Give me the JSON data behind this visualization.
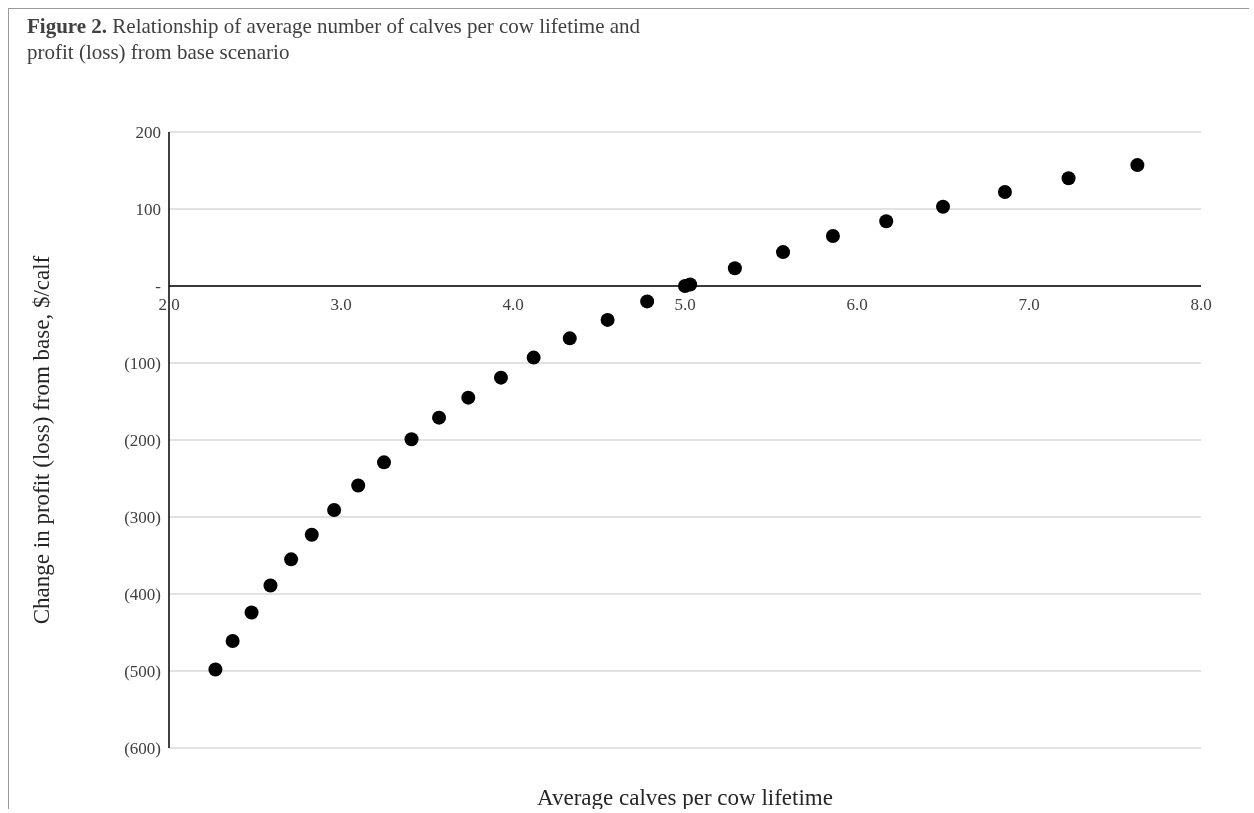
{
  "chart_data": {
    "type": "scatter",
    "title": "Figure 2. Relationship of average number of calves per cow lifetime and profit (loss) from base scenario",
    "xlabel": "Average calves per cow lifetime",
    "ylabel": "Change in profit (loss) from base, $/calf",
    "x": [
      2.27,
      2.37,
      2.48,
      2.59,
      2.71,
      2.83,
      2.96,
      3.1,
      3.25,
      3.41,
      3.57,
      3.74,
      3.93,
      4.12,
      4.33,
      4.55,
      4.78,
      5.0,
      5.03,
      5.29,
      5.57,
      5.86,
      6.17,
      6.5,
      6.86,
      7.23,
      7.63
    ],
    "series": [
      {
        "color": "#000000",
        "values": [
          -498,
          -461,
          -424,
          -389,
          -355,
          -323,
          -291,
          -259,
          -229,
          -199,
          -171,
          -145,
          -119,
          -93,
          -68,
          -44,
          -20,
          0,
          2,
          23,
          44,
          65,
          84,
          103,
          122,
          140,
          157
        ]
      }
    ],
    "xlim": [
      2,
      8
    ],
    "xticks": [
      {
        "value": 2,
        "label": "2.0"
      },
      {
        "value": 3,
        "label": "3.0"
      },
      {
        "value": 4,
        "label": "4.0"
      },
      {
        "value": 5,
        "label": "5.0"
      },
      {
        "value": 6,
        "label": "6.0"
      },
      {
        "value": 7,
        "label": "7.0"
      },
      {
        "value": 8,
        "label": "8.0"
      }
    ],
    "ylim": [
      -600,
      200
    ],
    "yticks": [
      200,
      100,
      {
        "value": 0,
        "label": "-"
      },
      {
        "value": -100,
        "label": "(100)"
      },
      {
        "value": -200,
        "label": "(200)"
      },
      {
        "value": -300,
        "label": "(300)"
      },
      {
        "value": -400,
        "label": "(400)"
      },
      {
        "value": -500,
        "label": "(500)"
      },
      {
        "value": -600,
        "label": "(600)"
      }
    ],
    "grid": "y",
    "marker": "circle"
  }
}
